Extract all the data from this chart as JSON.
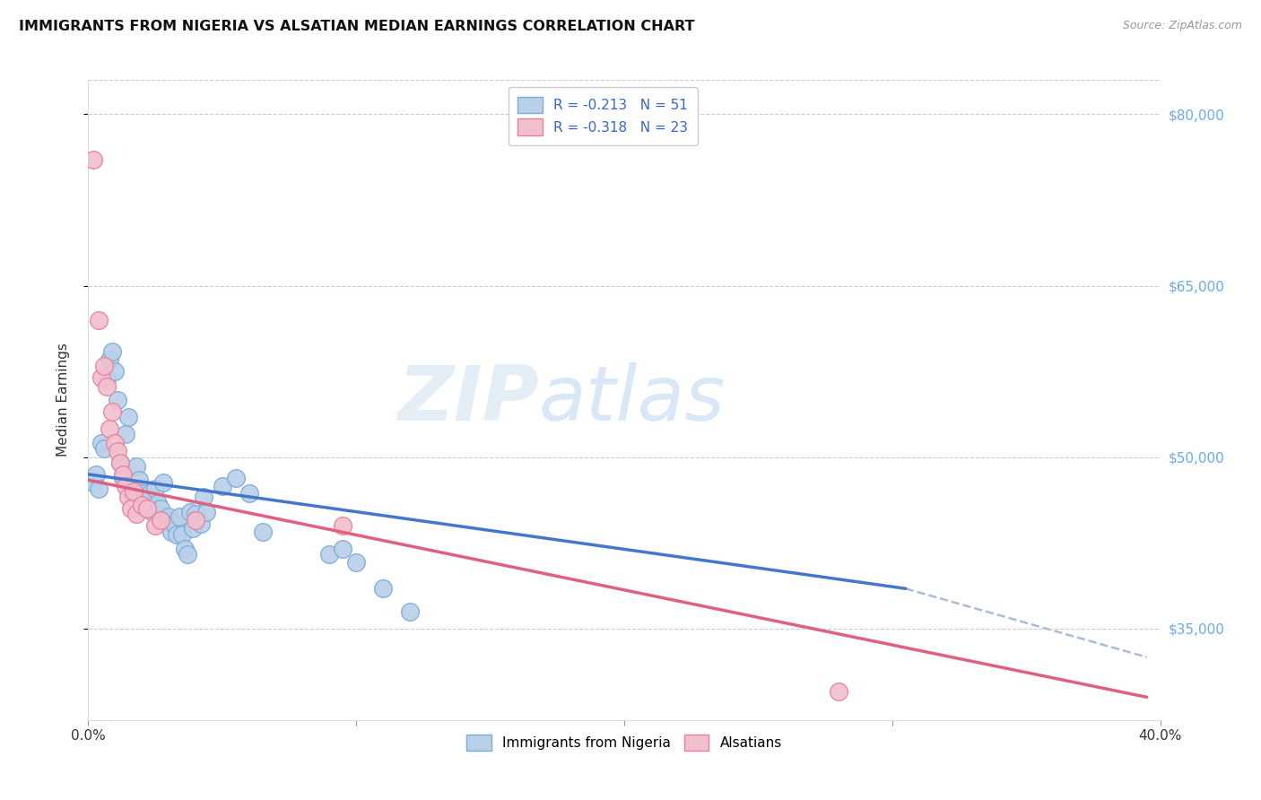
{
  "title": "IMMIGRANTS FROM NIGERIA VS ALSATIAN MEDIAN EARNINGS CORRELATION CHART",
  "source": "Source: ZipAtlas.com",
  "ylabel": "Median Earnings",
  "right_ytick_labels": [
    "$35,000",
    "$50,000",
    "$65,000",
    "$80,000"
  ],
  "right_yticks": [
    35000,
    50000,
    65000,
    80000
  ],
  "legend_line1": "R = -0.213   N = 51",
  "legend_line2": "R = -0.318   N = 23",
  "nigeria_color": "#b8d0e8",
  "nigeria_edge": "#7aadda",
  "alsatian_color": "#f2bfce",
  "alsatian_edge": "#e8809a",
  "nigeria_line_color": "#4477cc",
  "alsatian_line_color": "#e06080",
  "dashed_line_color": "#aabbdd",
  "watermark_zip": "ZIP",
  "watermark_atlas": "atlas",
  "nigeria_scatter": [
    [
      0.002,
      47800
    ],
    [
      0.003,
      48500
    ],
    [
      0.004,
      47200
    ],
    [
      0.005,
      51200
    ],
    [
      0.006,
      50800
    ],
    [
      0.007,
      56800
    ],
    [
      0.008,
      58500
    ],
    [
      0.009,
      59200
    ],
    [
      0.01,
      57500
    ],
    [
      0.011,
      55000
    ],
    [
      0.012,
      49500
    ],
    [
      0.013,
      48200
    ],
    [
      0.014,
      52000
    ],
    [
      0.015,
      53500
    ],
    [
      0.016,
      47000
    ],
    [
      0.017,
      46500
    ],
    [
      0.018,
      49200
    ],
    [
      0.019,
      48000
    ],
    [
      0.02,
      46800
    ],
    [
      0.021,
      45500
    ],
    [
      0.022,
      46200
    ],
    [
      0.023,
      46800
    ],
    [
      0.024,
      45200
    ],
    [
      0.025,
      47200
    ],
    [
      0.026,
      46000
    ],
    [
      0.027,
      45500
    ],
    [
      0.028,
      47800
    ],
    [
      0.029,
      44500
    ],
    [
      0.03,
      44800
    ],
    [
      0.031,
      43500
    ],
    [
      0.032,
      44200
    ],
    [
      0.033,
      43200
    ],
    [
      0.034,
      44800
    ],
    [
      0.035,
      43200
    ],
    [
      0.036,
      42000
    ],
    [
      0.037,
      41500
    ],
    [
      0.038,
      45200
    ],
    [
      0.039,
      43800
    ],
    [
      0.04,
      45000
    ],
    [
      0.042,
      44200
    ],
    [
      0.043,
      46500
    ],
    [
      0.044,
      45200
    ],
    [
      0.05,
      47500
    ],
    [
      0.055,
      48200
    ],
    [
      0.06,
      46800
    ],
    [
      0.065,
      43500
    ],
    [
      0.09,
      41500
    ],
    [
      0.095,
      42000
    ],
    [
      0.1,
      40800
    ],
    [
      0.11,
      38500
    ],
    [
      0.12,
      36500
    ]
  ],
  "alsatian_scatter": [
    [
      0.002,
      76000
    ],
    [
      0.004,
      62000
    ],
    [
      0.005,
      57000
    ],
    [
      0.006,
      58000
    ],
    [
      0.007,
      56200
    ],
    [
      0.008,
      52500
    ],
    [
      0.009,
      54000
    ],
    [
      0.01,
      51200
    ],
    [
      0.011,
      50500
    ],
    [
      0.012,
      49500
    ],
    [
      0.013,
      48500
    ],
    [
      0.014,
      47500
    ],
    [
      0.015,
      46500
    ],
    [
      0.016,
      45500
    ],
    [
      0.017,
      47000
    ],
    [
      0.018,
      45000
    ],
    [
      0.02,
      45800
    ],
    [
      0.022,
      45500
    ],
    [
      0.025,
      44000
    ],
    [
      0.027,
      44500
    ],
    [
      0.04,
      44500
    ],
    [
      0.095,
      44000
    ],
    [
      0.28,
      29500
    ]
  ],
  "nigeria_line": [
    [
      0.0,
      48500
    ],
    [
      0.305,
      38500
    ]
  ],
  "alsatian_line": [
    [
      0.0,
      48000
    ],
    [
      0.395,
      29000
    ]
  ],
  "dashed_line": [
    [
      0.305,
      38500
    ],
    [
      0.395,
      32500
    ]
  ],
  "xlim": [
    0.0,
    0.4
  ],
  "ylim": [
    27000,
    83000
  ]
}
